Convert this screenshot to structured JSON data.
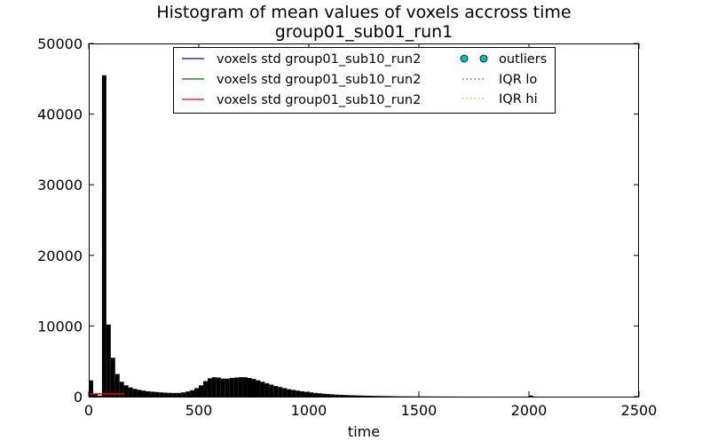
{
  "chart_data": {
    "type": "bar",
    "title_line1": "Histogram of mean values of voxels accross time",
    "title_line2": "group01_sub01_run1",
    "xlabel": "time",
    "ylabel": "",
    "xlim": [
      0,
      2500
    ],
    "ylim": [
      0,
      50000
    ],
    "x_ticks": [
      0,
      500,
      1000,
      1500,
      2000,
      2500
    ],
    "x_tick_labels": [
      "0",
      "500",
      "1000",
      "1500",
      "2000",
      "2500"
    ],
    "y_ticks": [
      0,
      10000,
      20000,
      30000,
      40000,
      50000
    ],
    "y_tick_labels": [
      "0",
      "10000",
      "20000",
      "30000",
      "40000",
      "50000"
    ],
    "grid": false,
    "bin_width": 20,
    "bin_starts": [
      0,
      20,
      40,
      60,
      80,
      100,
      120,
      140,
      160,
      180,
      200,
      220,
      240,
      260,
      280,
      300,
      320,
      340,
      360,
      380,
      400,
      420,
      440,
      460,
      480,
      500,
      520,
      540,
      560,
      580,
      600,
      620,
      640,
      660,
      680,
      700,
      720,
      740,
      760,
      780,
      800,
      820,
      840,
      860,
      880,
      900,
      920,
      940,
      960,
      980,
      1000,
      1020,
      1040,
      1060,
      1080,
      1100,
      1120,
      1140,
      1160,
      1180,
      1200,
      1220,
      1240,
      1260,
      1280,
      1300,
      1320,
      1340,
      1360,
      1380,
      1400,
      1420,
      1440,
      1460,
      1480,
      1500,
      1520,
      1540,
      1560,
      1580,
      1600,
      1620,
      1640,
      1660,
      1680,
      1700,
      1720,
      1740,
      1760,
      1780,
      1800,
      1820,
      1840,
      1860,
      1880,
      1900,
      1920,
      1940,
      1960,
      1980,
      2000,
      2020
    ],
    "counts": [
      2300,
      400,
      150,
      45500,
      10200,
      5500,
      3200,
      2100,
      1600,
      1300,
      1100,
      950,
      850,
      750,
      700,
      650,
      600,
      560,
      530,
      520,
      530,
      600,
      720,
      900,
      1200,
      1600,
      2200,
      2600,
      2750,
      2700,
      2550,
      2550,
      2650,
      2700,
      2750,
      2750,
      2650,
      2500,
      2300,
      2100,
      1900,
      1700,
      1500,
      1350,
      1200,
      1050,
      950,
      850,
      760,
      680,
      600,
      530,
      470,
      410,
      360,
      320,
      280,
      250,
      220,
      200,
      180,
      160,
      140,
      125,
      110,
      100,
      90,
      80,
      70,
      60,
      50,
      45,
      40,
      35,
      30,
      28,
      25,
      22,
      20,
      18,
      16,
      14,
      12,
      10,
      9,
      8,
      7,
      6,
      5,
      5,
      4,
      4,
      3,
      3,
      3,
      2,
      2,
      2,
      2,
      2,
      150,
      2
    ],
    "series": [
      {
        "name": "voxels std group01_sub10_run2",
        "color": "#0000ff",
        "style": "solid",
        "y": 0
      },
      {
        "name": "voxels std group01_sub10_run2",
        "color": "#008000",
        "style": "solid",
        "y": 0
      },
      {
        "name": "voxels std group01_sub10_run2",
        "color": "#ff0000",
        "style": "solid",
        "x": [
          0,
          160
        ],
        "y": [
          400,
          400
        ]
      },
      {
        "name": "outliers",
        "color": "#00bfbf",
        "style": "marker"
      },
      {
        "name": "IQR lo",
        "color": "#bf00bf",
        "style": "dotted"
      },
      {
        "name": "IQR hi",
        "color": "#bfbf00",
        "style": "dotted"
      }
    ],
    "legend_placement": "top-center"
  }
}
